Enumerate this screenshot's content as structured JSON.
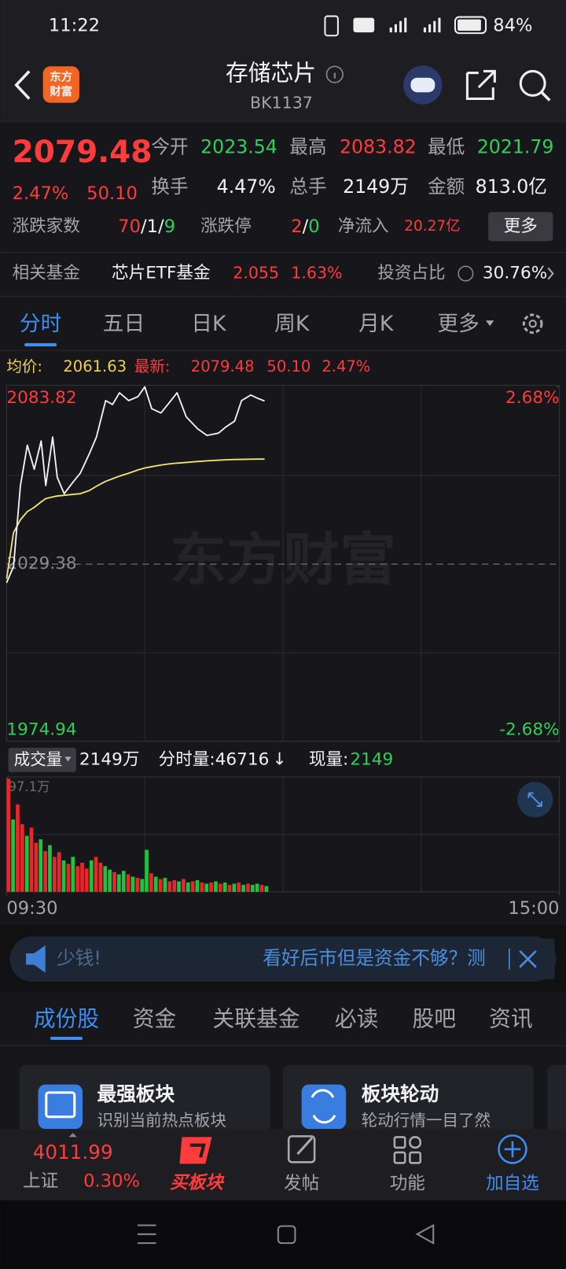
{
  "status_bar": {
    "time": "11:22",
    "battery": "84%"
  },
  "header": {
    "logo": [
      "东方",
      "财富"
    ],
    "title": "存储芯片",
    "code": "BK1137"
  },
  "quote": {
    "price": "2079.48",
    "change_pct": "2.47%",
    "change": "50.10",
    "open_label": "今开",
    "open": "2023.54",
    "high_label": "最高",
    "high": "2083.82",
    "low_label": "最低",
    "low": "2021.79",
    "turnover_label": "换手",
    "turnover": "4.47%",
    "volume_label": "总手",
    "volume": "2149万",
    "amount_label": "金额",
    "amount": "813.0亿",
    "breadth_label": "涨跌家数",
    "up": "70",
    "flat": "1",
    "down": "9",
    "sep": "/",
    "limit_label": "涨跌停",
    "limit_up": "2",
    "limit_down": "0",
    "inflow_label": "净流入",
    "inflow": "20.27亿",
    "more": "更多"
  },
  "fund": {
    "label": "相关基金",
    "name": "芯片ETF基金",
    "price": "2.055",
    "pct": "1.63%",
    "ratio_label": "投资占比",
    "ratio": "30.76%"
  },
  "tabs": [
    "分时",
    "五日",
    "日K",
    "周K",
    "月K",
    "更多"
  ],
  "watermark": "东方财富",
  "volume_bar": {
    "label": "成交量",
    "total": "2149万",
    "minute_label": "分时量:",
    "minute": "46716",
    "arrow": "↓",
    "now_label": "现量:",
    "now": "2149"
  },
  "chart_data": [
    {
      "type": "line",
      "x": [
        0,
        3,
        6,
        9,
        12,
        15,
        17,
        20,
        22,
        25,
        29,
        32,
        36,
        39,
        43,
        46,
        49,
        53,
        57,
        60,
        63,
        67,
        70,
        74,
        78,
        83,
        87,
        92,
        95,
        99,
        102,
        106,
        109,
        112
      ],
      "xlim": [
        0,
        240
      ],
      "xticks": [
        {
          "value": 0,
          "label": "09:30"
        },
        {
          "value": 240,
          "label": "15:00"
        }
      ],
      "ylim": [
        1974.94,
        2083.82
      ],
      "yticks": [
        2083.82,
        2029.38,
        1974.94
      ],
      "y2lim": [
        -2.68,
        2.68
      ],
      "y2ticks": [
        {
          "value": 2.68,
          "label": "2.68%"
        },
        {
          "value": -2.68,
          "label": "-2.68%"
        }
      ],
      "grid": true,
      "series": [
        {
          "name": "最新:",
          "color": "#f2f2f2",
          "values": [
            2023.66,
            2028.6,
            2053.5,
            2065.9,
            2058.5,
            2067.2,
            2053.5,
            2068.4,
            2056,
            2051,
            2054.7,
            2057.3,
            2063.4,
            2068.4,
            2079.6,
            2078.4,
            2082,
            2079.6,
            2080.8,
            2083.82,
            2077.1,
            2075.8,
            2078.4,
            2082,
            2074.6,
            2070.9,
            2068.9,
            2069.6,
            2071.4,
            2073.3,
            2079.6,
            2081.3,
            2080.3,
            2079.48
          ]
        },
        {
          "name": "均价:",
          "color": "#f3e27a",
          "values": [
            2024.9,
            2039,
            2043,
            2045.5,
            2046.8,
            2048.5,
            2049.5,
            2050,
            2050.3,
            2050.5,
            2050.8,
            2051,
            2052,
            2053.3,
            2054.8,
            2055.6,
            2056.4,
            2057.3,
            2058.3,
            2058.9,
            2059.3,
            2059.8,
            2060.1,
            2060.4,
            2060.6,
            2060.9,
            2061.1,
            2061.3,
            2061.4,
            2061.5,
            2061.55,
            2061.6,
            2061.62,
            2061.63
          ]
        }
      ]
    },
    {
      "type": "bar",
      "x": [
        0,
        2,
        4,
        6,
        8,
        10,
        12,
        14,
        16,
        18,
        20,
        22,
        24,
        26,
        28,
        30,
        32,
        34,
        36,
        38,
        40,
        42,
        44,
        46,
        48,
        50,
        52,
        54,
        56,
        58,
        60,
        62,
        64,
        66,
        68,
        70,
        72,
        74,
        76,
        78,
        80,
        82,
        84,
        86,
        88,
        90,
        92,
        94,
        96,
        98,
        100,
        102,
        104,
        106,
        108,
        110,
        112
      ],
      "xlim": [
        0,
        240
      ],
      "ylim": [
        0,
        97.1
      ],
      "yticks": [
        {
          "value": 97.1,
          "label": "97.1万"
        }
      ],
      "values": [
        97,
        62,
        75,
        58,
        48,
        55,
        42,
        45,
        35,
        40,
        30,
        34,
        27,
        24,
        30,
        22,
        25,
        20,
        27,
        30,
        25,
        22,
        19,
        17,
        15,
        18,
        15,
        13,
        12,
        11,
        36,
        16,
        13,
        11,
        12,
        9,
        10,
        9,
        11,
        8,
        9,
        10,
        8,
        7,
        8,
        9,
        7,
        8,
        6,
        7,
        8,
        6,
        7,
        6,
        7,
        6,
        5
      ],
      "directions": [
        "up",
        "down",
        "up",
        "up",
        "down",
        "up",
        "up",
        "down",
        "up",
        "down",
        "up",
        "up",
        "down",
        "up",
        "down",
        "up",
        "up",
        "up",
        "down",
        "up",
        "up",
        "down",
        "down",
        "up",
        "down",
        "down",
        "up",
        "down",
        "up",
        "down",
        "down",
        "up",
        "down",
        "up",
        "down",
        "up",
        "up",
        "down",
        "up",
        "down",
        "up",
        "down",
        "up",
        "down",
        "up",
        "down",
        "up",
        "down",
        "up",
        "down",
        "up",
        "down",
        "up",
        "down",
        "down",
        "up",
        "down"
      ],
      "colors": {
        "up": "#e8262c",
        "down": "#1fc43b"
      }
    }
  ],
  "banner": {
    "left": "少钱!",
    "text": "看好后市但是资金不够？测"
  },
  "sub_tabs": [
    "成份股",
    "资金",
    "关联基金",
    "必读",
    "股吧",
    "资讯"
  ],
  "cards": [
    {
      "title": "最强板块",
      "desc": "识别当前热点板块"
    },
    {
      "title": "板块轮动",
      "desc": "轮动行情一目了然"
    }
  ],
  "bottom_nav": {
    "index_value": "4011.99",
    "index_name": "上证",
    "index_pct": "0.30%",
    "buy": "买板块",
    "post": "发帖",
    "func": "功能",
    "add": "加自选"
  }
}
